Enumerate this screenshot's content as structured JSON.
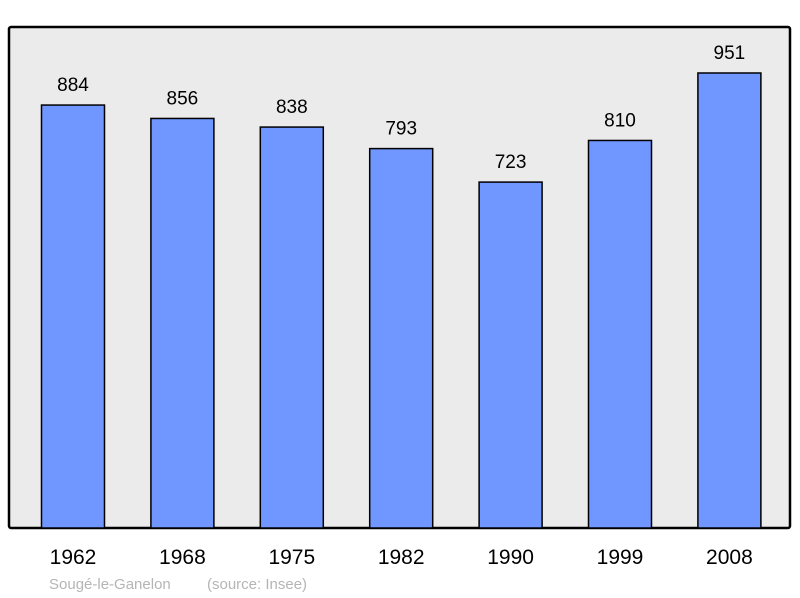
{
  "chart_data": {
    "type": "bar",
    "categories": [
      "1962",
      "1968",
      "1975",
      "1982",
      "1990",
      "1999",
      "2008"
    ],
    "values": [
      884,
      856,
      838,
      793,
      723,
      810,
      951
    ],
    "title": "",
    "xlabel": "",
    "ylabel": "",
    "ylim": [
      0,
      1047
    ],
    "grid": false,
    "data_labels": true,
    "colors": {
      "bar": "#7096ff",
      "plot_background": "#ebebeb",
      "border": "#000000"
    }
  },
  "footer": {
    "place": "Sougé-le-Ganelon",
    "source": "(source: Insee)"
  }
}
